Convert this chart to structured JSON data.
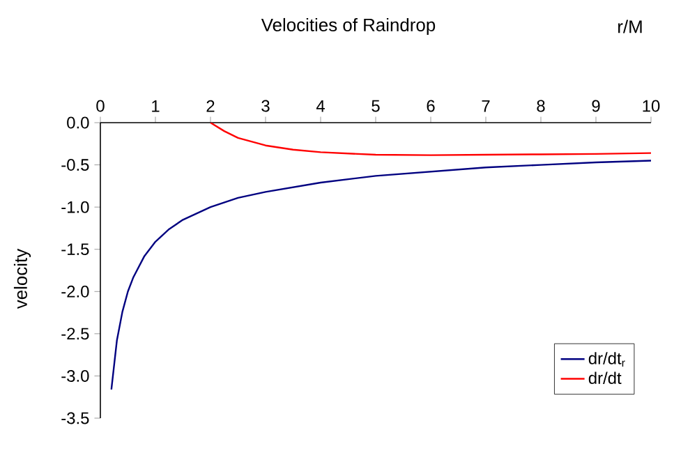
{
  "chart_data": {
    "type": "line",
    "title": "Velocities of Raindrop",
    "xlabel": "r/M",
    "ylabel": "velocity",
    "xlim": [
      0,
      10
    ],
    "ylim": [
      -3.5,
      0
    ],
    "xticks": [
      0,
      1,
      2,
      3,
      4,
      5,
      6,
      7,
      8,
      9,
      10
    ],
    "yticks": [
      {
        "value": 0,
        "label": "0.0"
      },
      {
        "value": -0.5,
        "label": "-0.5"
      },
      {
        "value": -1,
        "label": "-1.0"
      },
      {
        "value": -1.5,
        "label": "-1.5"
      },
      {
        "value": -2,
        "label": "-2.0"
      },
      {
        "value": -2.5,
        "label": "-2.5"
      },
      {
        "value": -3,
        "label": "-3.0"
      },
      {
        "value": -3.5,
        "label": "-3.5"
      }
    ],
    "legend": "bottom right",
    "series": [
      {
        "name": "dr/dt$_{r}$",
        "color": "#000080",
        "x": [
          0.2,
          0.3,
          0.4,
          0.5,
          0.6,
          0.8,
          1,
          1.25,
          1.5,
          2,
          2.5,
          3,
          4,
          5,
          6,
          7,
          8,
          9,
          10
        ],
        "values": [
          -3.16,
          -2.58,
          -2.24,
          -2.0,
          -1.83,
          -1.58,
          -1.41,
          -1.26,
          -1.15,
          -1.0,
          -0.89,
          -0.82,
          -0.71,
          -0.63,
          -0.58,
          -0.53,
          -0.5,
          -0.47,
          -0.45
        ]
      },
      {
        "name": "dr/dt",
        "color": "#ff0000",
        "x": [
          2,
          2.25,
          2.5,
          3,
          3.5,
          4,
          5,
          6,
          7,
          8,
          9,
          10
        ],
        "values": [
          0,
          -0.1,
          -0.18,
          -0.27,
          -0.32,
          -0.35,
          -0.38,
          -0.385,
          -0.38,
          -0.375,
          -0.37,
          -0.36
        ]
      }
    ]
  }
}
